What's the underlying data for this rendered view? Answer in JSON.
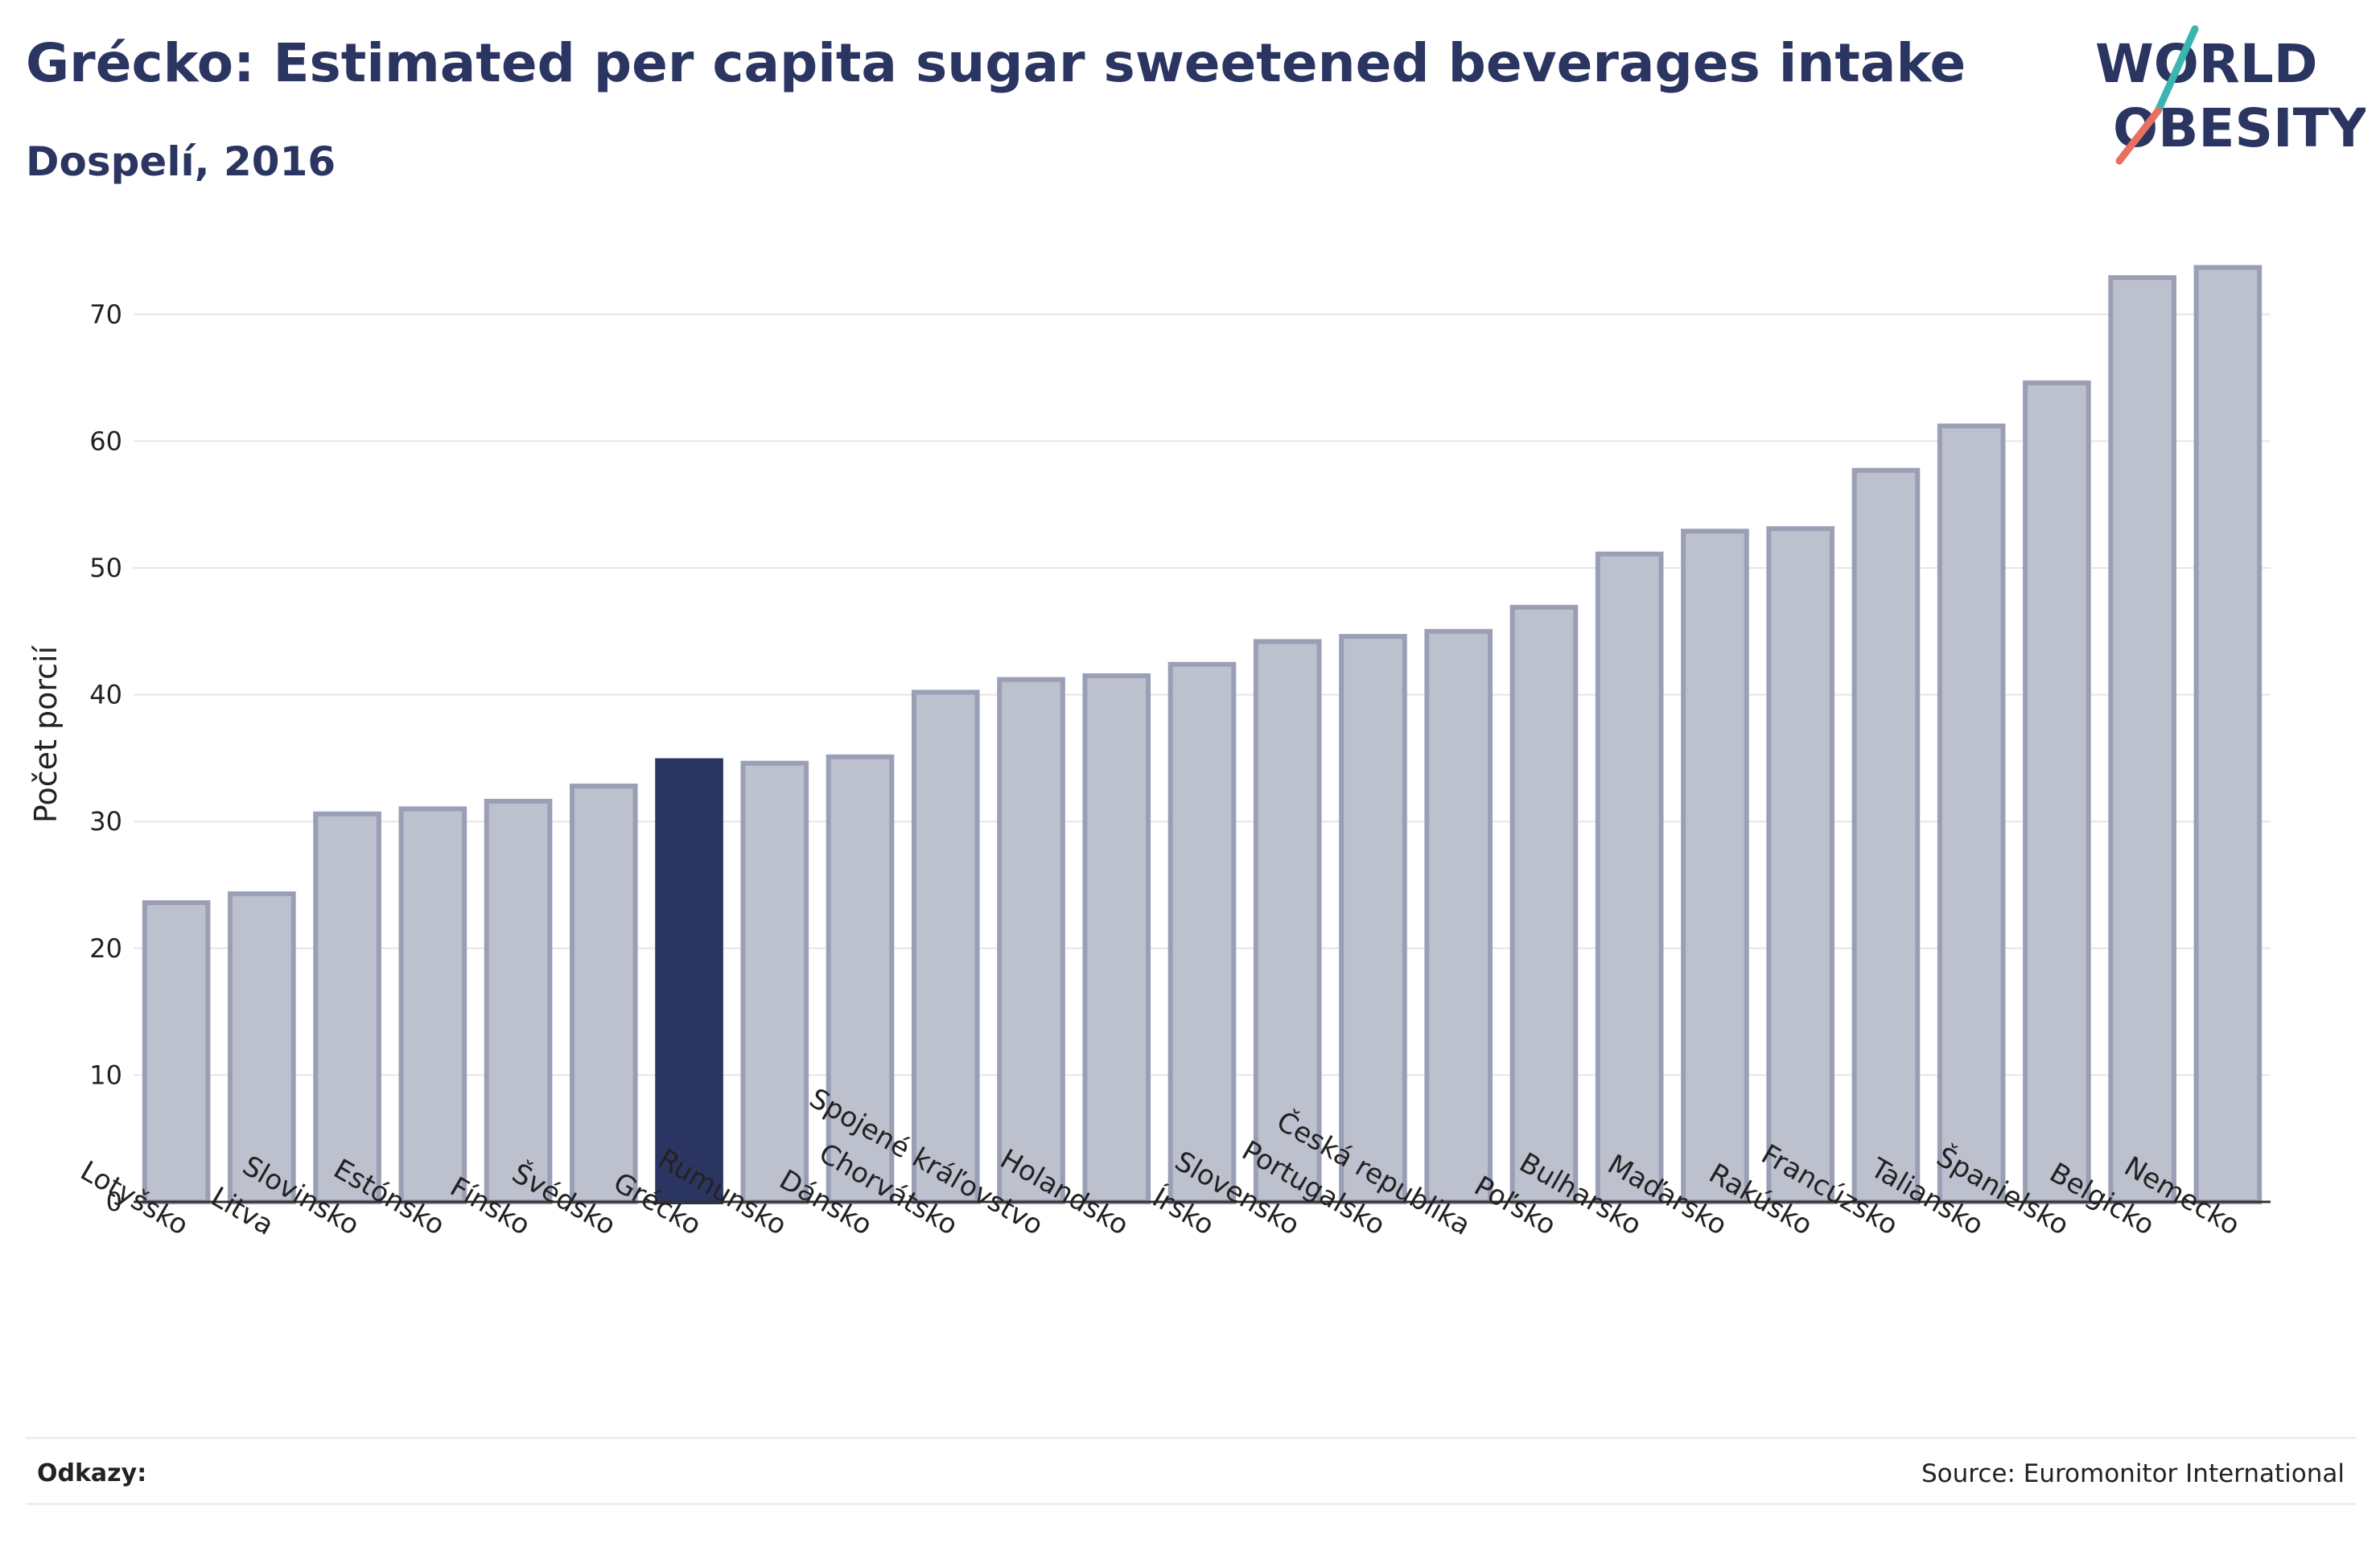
{
  "header": {
    "title": "Grécko: Estimated per capita sugar sweetened beverages intake",
    "subtitle": "Dospelí, 2016"
  },
  "logo": {
    "line1": "WORLD",
    "line2": "OBESITY"
  },
  "footer": {
    "references_label": "Odkazy:",
    "source": "Source: Euromonitor International"
  },
  "colors": {
    "highlight": "#2b3561",
    "bar": "#bdc0cd",
    "bar_border": "#9a9fb5",
    "text": "#2b3561",
    "logo_teal": "#3ab5b0",
    "logo_coral": "#e8705f"
  },
  "chart_data": {
    "type": "bar",
    "ylabel": "Počet porcií",
    "ylim": [
      0,
      75
    ],
    "yticks": [
      0,
      10,
      20,
      30,
      40,
      50,
      60,
      70
    ],
    "grid": true,
    "highlight": "Grécko",
    "categories": [
      "Lotyšsko",
      "Litva",
      "Slovinsko",
      "Estónsko",
      "Fínsko",
      "Švédsko",
      "Grécko",
      "Rumunsko",
      "Dánsko",
      "Chorvátsko",
      "Spojené kráľovstvo",
      "Holandsko",
      "Írsko",
      "Slovensko",
      "Portugalsko",
      "Česká republika",
      "Poľsko",
      "Bulharsko",
      "Maďarsko",
      "Rakúsko",
      "Francúzsko",
      "Taliansko",
      "Španielsko",
      "Belgicko",
      "Nemecko"
    ],
    "values": [
      23.6,
      24.3,
      30.6,
      31.0,
      31.6,
      32.8,
      34.8,
      34.6,
      35.1,
      40.2,
      41.2,
      41.5,
      42.4,
      44.2,
      44.6,
      45.0,
      46.9,
      51.1,
      52.9,
      53.1,
      57.7,
      61.2,
      64.6,
      72.9,
      73.7
    ]
  }
}
